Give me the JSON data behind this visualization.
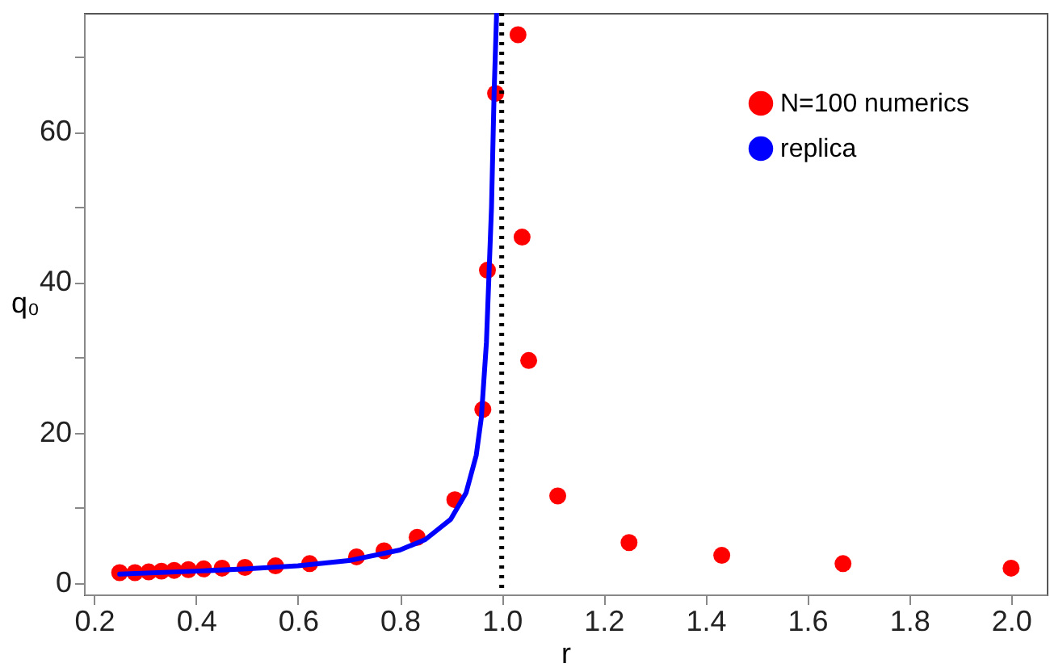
{
  "chart_data": {
    "type": "scatter",
    "xlabel": "r",
    "ylabel": "q₀",
    "xlim": [
      0.18,
      2.07
    ],
    "ylim": [
      -1.5,
      75.8
    ],
    "xticks": [
      0.2,
      0.4,
      0.6,
      0.8,
      {
        "value": 1.0,
        "label": "1.0"
      },
      1.2,
      1.4,
      1.6,
      1.8,
      {
        "value": 2.0,
        "label": "2.0"
      }
    ],
    "yticks": [
      0,
      {
        "value": 10,
        "label": null
      },
      20,
      {
        "value": 30,
        "label": null
      },
      40,
      {
        "value": 50,
        "label": null
      },
      60,
      {
        "value": 70,
        "label": null
      }
    ],
    "grid": false,
    "legend": "top right",
    "marker": "circle",
    "ref_lines": [
      {
        "axis": "x",
        "value": 1.0,
        "color": "#000000",
        "line_style": "dotted"
      }
    ],
    "series": [
      {
        "name": "N=100 numerics",
        "color": "#ff0000",
        "x": [
          0.25,
          0.28,
          0.307,
          0.332,
          0.357,
          0.385,
          0.415,
          0.451,
          0.496,
          0.556,
          0.623,
          0.715,
          0.769,
          0.834,
          0.908,
          0.963,
          0.972,
          0.988,
          1.032,
          1.04,
          1.053,
          1.11,
          1.25,
          1.432,
          1.67,
          2.0
        ],
        "values": [
          1.4,
          1.4,
          1.5,
          1.6,
          1.7,
          1.8,
          1.9,
          2.0,
          2.1,
          2.3,
          2.6,
          3.5,
          4.3,
          6.1,
          11.1,
          23.1,
          41.6,
          65.1,
          72.9,
          46,
          29.6,
          11.6,
          5.4,
          3.7,
          2.6,
          2.0
        ]
      },
      {
        "name": "replica",
        "type": "line",
        "marker": "none",
        "color": "#0000ff",
        "line_style": "solid",
        "x": [
          0.25,
          0.4,
          0.5,
          0.6,
          0.7,
          0.8,
          0.85,
          0.9,
          0.93,
          0.95,
          0.96,
          0.97,
          0.98,
          0.985,
          0.99
        ],
        "values": [
          1.2,
          1.6,
          1.9,
          2.3,
          3.0,
          4.4,
          5.8,
          8.5,
          12,
          17,
          22,
          32,
          50,
          65,
          75.8
        ]
      }
    ]
  }
}
